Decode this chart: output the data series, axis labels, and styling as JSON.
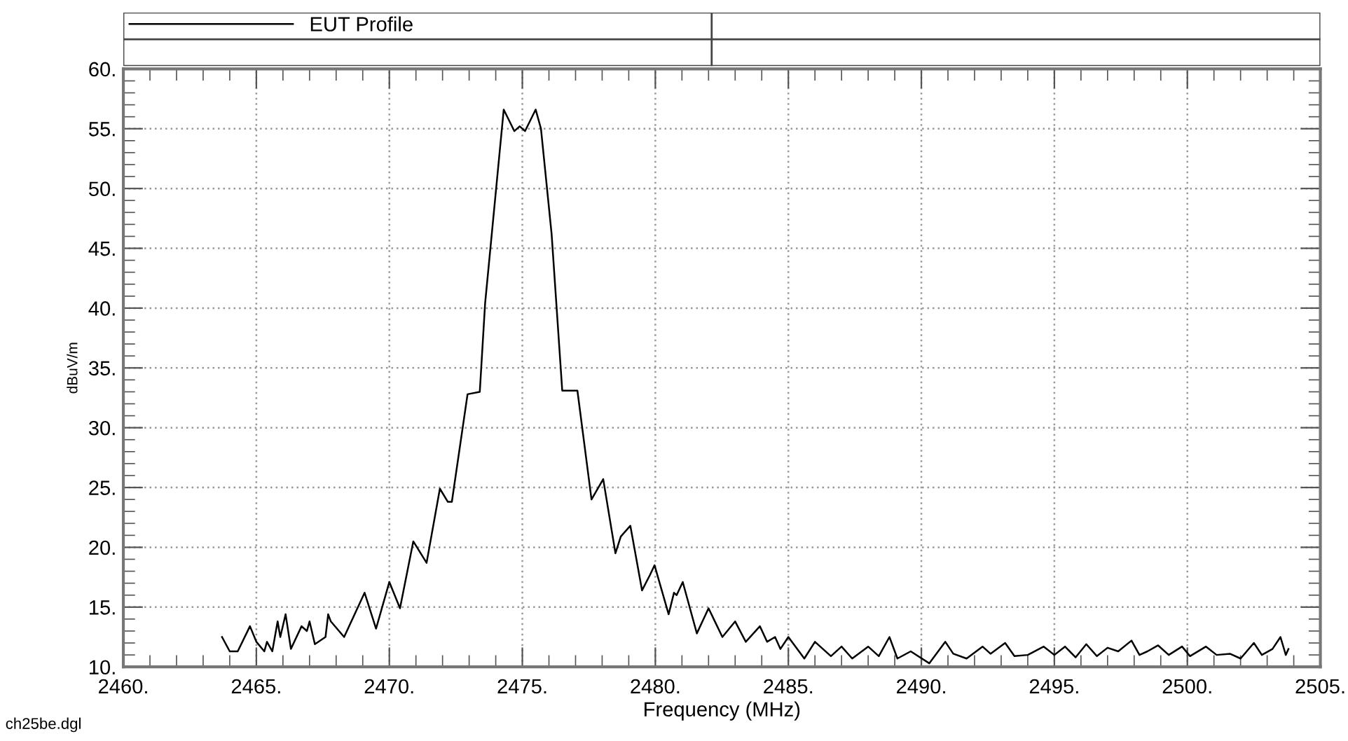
{
  "chart_data": {
    "type": "line",
    "xlabel": "Frequency (MHz)",
    "ylabel": "dBuV/m",
    "annotations": [
      "ch25be.dgl"
    ],
    "series": [
      {
        "name": "EUT Profile",
        "color": "#000000",
        "x": [
          2463.71,
          2464.0,
          2464.3,
          2464.76,
          2465.0,
          2465.3,
          2465.4,
          2465.6,
          2465.8,
          2465.9,
          2466.1,
          2466.3,
          2466.7,
          2466.9,
          2467.0,
          2467.2,
          2467.6,
          2467.7,
          2467.8,
          2468.3,
          2469.07,
          2469.5,
          2470.0,
          2470.4,
          2470.9,
          2471.4,
          2471.9,
          2472.2,
          2472.35,
          2472.94,
          2473.4,
          2473.6,
          2474.3,
          2474.7,
          2474.9,
          2475.1,
          2475.5,
          2475.7,
          2476.1,
          2476.5,
          2476.9,
          2477.07,
          2477.6,
          2478.04,
          2478.5,
          2478.7,
          2479.06,
          2479.5,
          2479.8,
          2479.97,
          2480.5,
          2480.7,
          2480.8,
          2481.03,
          2481.56,
          2482.0,
          2482.52,
          2483.0,
          2483.4,
          2483.93,
          2484.2,
          2484.5,
          2484.7,
          2485.0,
          2485.6,
          2486.0,
          2486.6,
          2487.0,
          2487.4,
          2488.0,
          2488.4,
          2488.8,
          2489.1,
          2489.6,
          2490.3,
          2490.9,
          2491.2,
          2491.7,
          2492.3,
          2492.6,
          2493.15,
          2493.5,
          2494.0,
          2494.6,
          2495.0,
          2495.4,
          2495.8,
          2496.2,
          2496.6,
          2497.0,
          2497.4,
          2497.9,
          2498.2,
          2498.5,
          2498.9,
          2499.3,
          2499.8,
          2500.1,
          2500.7,
          2501.1,
          2501.6,
          2502.0,
          2502.5,
          2502.8,
          2503.2,
          2503.5,
          2503.7,
          2503.8
        ],
        "values": [
          12.5,
          11.3,
          11.3,
          13.4,
          12.1,
          11.3,
          12.1,
          11.3,
          13.8,
          12.5,
          14.4,
          11.5,
          13.4,
          13.0,
          13.8,
          11.9,
          12.5,
          14.4,
          13.8,
          12.5,
          16.2,
          13.2,
          17.1,
          14.9,
          20.5,
          18.7,
          24.9,
          23.8,
          23.8,
          32.8,
          33.0,
          40.4,
          56.6,
          54.8,
          55.2,
          54.8,
          56.6,
          55.0,
          46.2,
          33.1,
          33.1,
          33.1,
          24.0,
          25.7,
          19.5,
          20.9,
          21.8,
          16.4,
          17.7,
          18.5,
          14.4,
          16.2,
          16.0,
          17.1,
          12.8,
          14.9,
          12.5,
          13.8,
          12.1,
          13.4,
          12.1,
          12.5,
          11.5,
          12.5,
          10.7,
          12.1,
          10.9,
          11.7,
          10.7,
          11.7,
          10.9,
          12.5,
          10.7,
          11.3,
          10.3,
          12.1,
          11.1,
          10.7,
          11.7,
          11.1,
          12.0,
          10.9,
          11.0,
          11.7,
          11.0,
          11.7,
          10.8,
          11.9,
          10.9,
          11.6,
          11.3,
          12.2,
          11.0,
          11.3,
          11.8,
          11.0,
          11.7,
          10.9,
          11.7,
          11.0,
          11.1,
          10.7,
          12.0,
          11.0,
          11.5,
          12.5,
          11.0,
          11.5
        ]
      }
    ],
    "xlim": [
      2460,
      2505
    ],
    "xticks": [
      {
        "value": 2460,
        "label": "2460."
      },
      {
        "value": 2465,
        "label": "2465."
      },
      {
        "value": 2470,
        "label": "2470."
      },
      {
        "value": 2475,
        "label": "2475."
      },
      {
        "value": 2480,
        "label": "2480."
      },
      {
        "value": 2485,
        "label": "2485."
      },
      {
        "value": 2490,
        "label": "2490."
      },
      {
        "value": 2495,
        "label": "2495."
      },
      {
        "value": 2500,
        "label": "2500."
      },
      {
        "value": 2505,
        "label": "2505."
      }
    ],
    "ylim": [
      10,
      60
    ],
    "yticks": [
      {
        "value": 10,
        "label": "10."
      },
      {
        "value": 15,
        "label": "15."
      },
      {
        "value": 20,
        "label": "20."
      },
      {
        "value": 25,
        "label": "25."
      },
      {
        "value": 30,
        "label": "30."
      },
      {
        "value": 35,
        "label": "35."
      },
      {
        "value": 40,
        "label": "40."
      },
      {
        "value": 45,
        "label": "45."
      },
      {
        "value": 50,
        "label": "50."
      },
      {
        "value": 55,
        "label": "55."
      },
      {
        "value": 60,
        "label": "60."
      }
    ],
    "grid": true,
    "legend": "top",
    "line_style": "solid"
  }
}
